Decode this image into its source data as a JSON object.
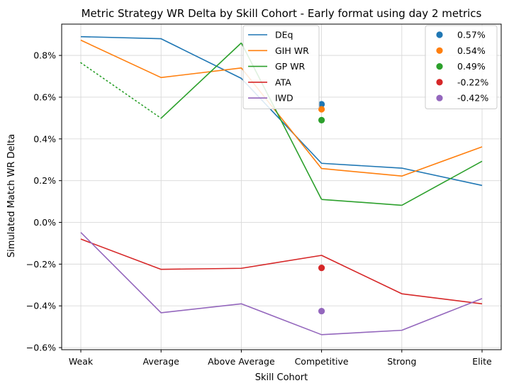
{
  "chart_data": {
    "type": "line",
    "title": "Metric Strategy WR Delta by Skill Cohort - Early format using day 2 metrics",
    "xlabel": "Skill Cohort",
    "ylabel": "Simulated Match WR Delta",
    "categories": [
      "Weak",
      "Average",
      "Above Average",
      "Competitive",
      "Strong",
      "Elite"
    ],
    "ylim": [
      -0.61,
      0.95
    ],
    "yticks": [
      -0.6,
      -0.4,
      -0.2,
      0.0,
      0.2,
      0.4,
      0.6,
      0.8
    ],
    "ytick_labels": [
      "−0.6%",
      "−0.4%",
      "−0.2%",
      "0.0%",
      "0.2%",
      "0.4%",
      "0.6%",
      "0.8%"
    ],
    "grid": true,
    "series": [
      {
        "name": "DEq",
        "color": "#1f77b4",
        "values": [
          0.89,
          0.88,
          0.69,
          0.283,
          0.26,
          0.177
        ]
      },
      {
        "name": "GIH WR",
        "color": "#ff7f0e",
        "values": [
          0.873,
          0.694,
          0.74,
          0.258,
          0.222,
          0.362
        ]
      },
      {
        "name": "GP WR",
        "color": "#2ca02c",
        "values": [
          0.765,
          0.499,
          0.86,
          0.11,
          0.082,
          0.293
        ],
        "dotted_segments": [
          0
        ]
      },
      {
        "name": "ATA",
        "color": "#d62728",
        "values": [
          -0.08,
          -0.225,
          -0.22,
          -0.158,
          -0.342,
          -0.39
        ]
      },
      {
        "name": "IWD",
        "color": "#9467bd",
        "values": [
          -0.048,
          -0.433,
          -0.39,
          -0.538,
          -0.517,
          -0.365
        ]
      }
    ],
    "averages": [
      {
        "label": "0.57%",
        "value": 0.566,
        "color": "#1f77b4"
      },
      {
        "label": "0.54%",
        "value": 0.542,
        "color": "#ff7f0e"
      },
      {
        "label": "0.49%",
        "value": 0.49,
        "color": "#2ca02c"
      },
      {
        "label": "-0.22%",
        "value": -0.218,
        "color": "#d62728"
      },
      {
        "label": "-0.42%",
        "value": -0.425,
        "color": "#9467bd"
      }
    ],
    "averages_category": "Competitive",
    "legend_series_placement": "upper-center",
    "legend_averages_placement": "upper-right"
  }
}
